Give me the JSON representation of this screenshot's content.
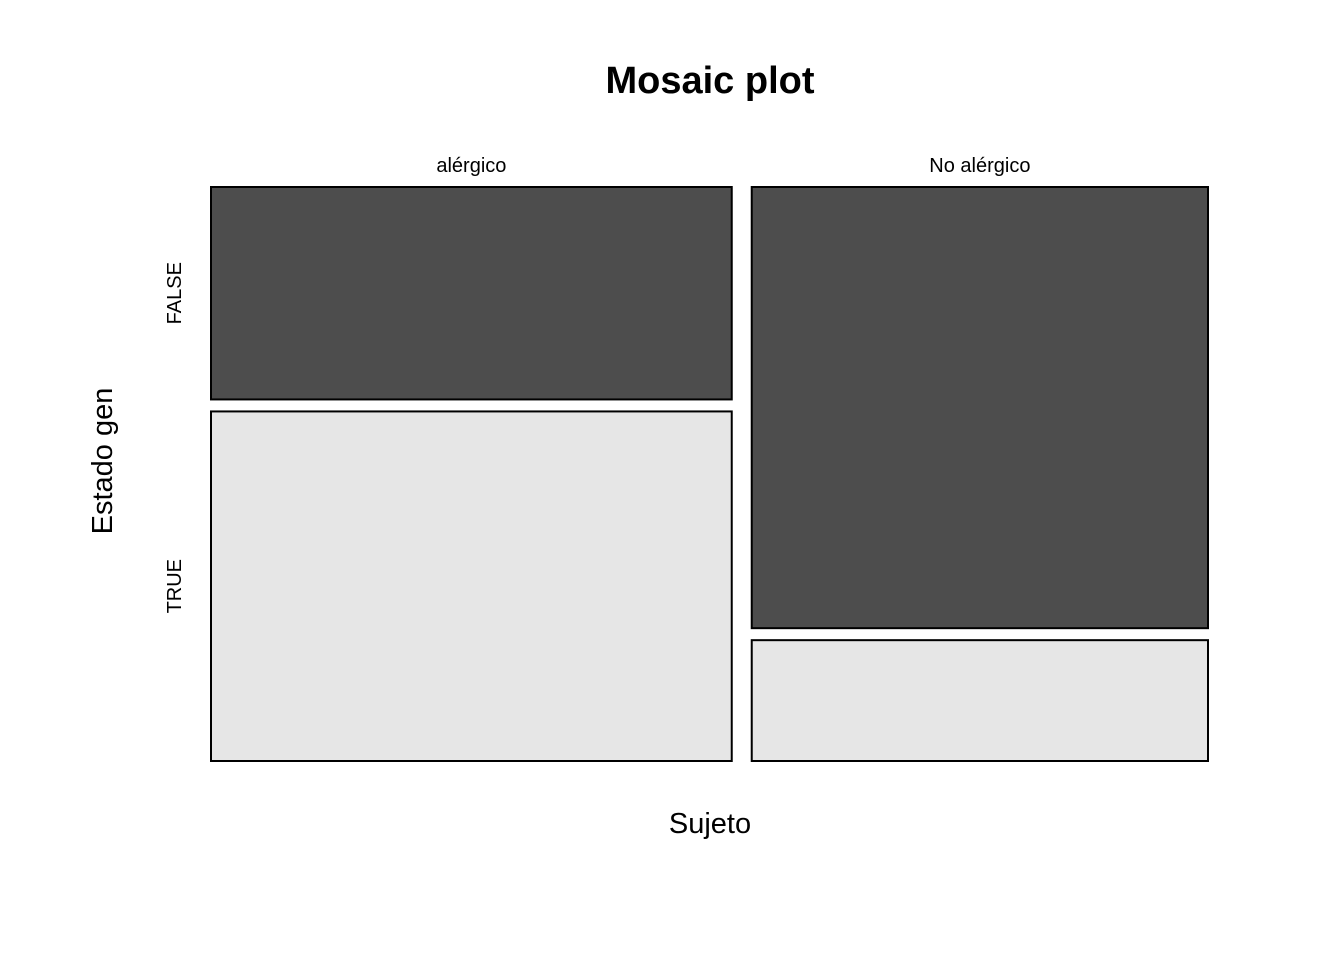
{
  "chart_data": {
    "type": "mosaic",
    "title": "Mosaic plot",
    "xlabel": "Sujeto",
    "ylabel": "Estado gen",
    "x_categories": [
      "alérgico",
      "No alérgico"
    ],
    "y_categories": [
      "FALSE",
      "TRUE"
    ],
    "column_widths": [
      0.533,
      0.467
    ],
    "proportions": {
      "alérgico": {
        "FALSE": 0.378,
        "TRUE": 0.622
      },
      "No alérgico": {
        "FALSE": 0.785,
        "TRUE": 0.215
      }
    },
    "colors": {
      "FALSE": "#4d4d4d",
      "TRUE": "#e6e6e6"
    },
    "grid": false
  }
}
